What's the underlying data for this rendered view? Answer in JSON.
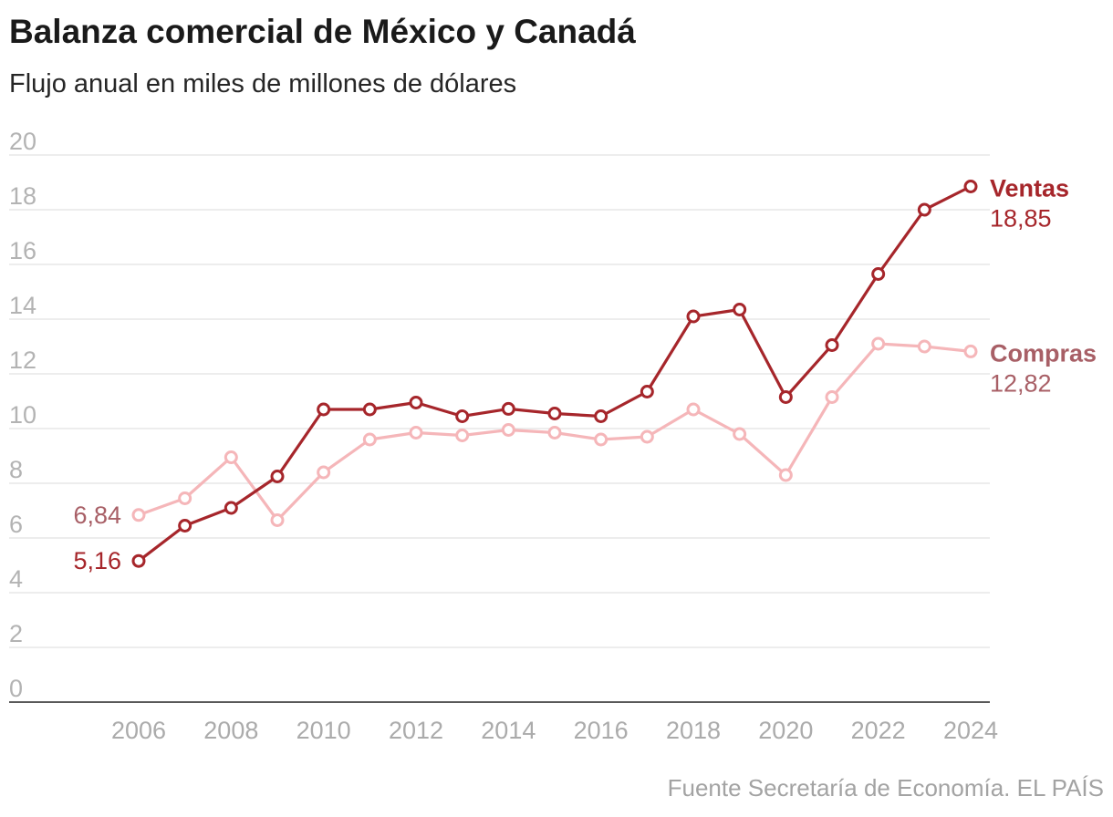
{
  "title": "Balanza comercial de México y Canadá",
  "subtitle": "Flujo anual en miles de millones de dólares",
  "source": "Fuente Secretaría de Economía. EL PAÍS",
  "colors": {
    "ventas": "#a6262b",
    "compras_line": "#f5b6b9",
    "compras_label": "#a85f66",
    "grid": "#e2e2e2",
    "axis": "#222222",
    "tick": "#b3b3b3"
  },
  "chart_data": {
    "type": "line",
    "title": "Balanza comercial de México y Canadá",
    "subtitle": "Flujo anual en miles de millones de dólares",
    "xlabel": "",
    "ylabel": "",
    "ylim": [
      0,
      20
    ],
    "yticks": [
      "0",
      "2",
      "4",
      "6",
      "8",
      "10",
      "12",
      "14",
      "16",
      "18",
      "20"
    ],
    "x": [
      2006,
      2007,
      2008,
      2009,
      2010,
      2011,
      2012,
      2013,
      2014,
      2015,
      2016,
      2017,
      2018,
      2019,
      2020,
      2021,
      2022,
      2023,
      2024
    ],
    "xticks": [
      "2006",
      "2008",
      "2010",
      "2012",
      "2014",
      "2016",
      "2018",
      "2020",
      "2022",
      "2024"
    ],
    "series": [
      {
        "name": "Ventas",
        "end_label": "18,85",
        "start_label": "5,16",
        "values": [
          5.16,
          6.45,
          7.1,
          8.25,
          10.7,
          10.7,
          10.95,
          10.45,
          10.72,
          10.55,
          10.45,
          11.35,
          14.1,
          14.35,
          11.15,
          13.05,
          15.65,
          18.0,
          18.85
        ]
      },
      {
        "name": "Compras",
        "end_label": "12,82",
        "start_label": "6,84",
        "values": [
          6.84,
          7.45,
          8.95,
          6.65,
          8.4,
          9.6,
          9.85,
          9.75,
          9.95,
          9.85,
          9.6,
          9.7,
          10.7,
          9.8,
          8.3,
          11.15,
          13.1,
          13.0,
          12.82
        ]
      }
    ],
    "legend": "inline-right"
  }
}
